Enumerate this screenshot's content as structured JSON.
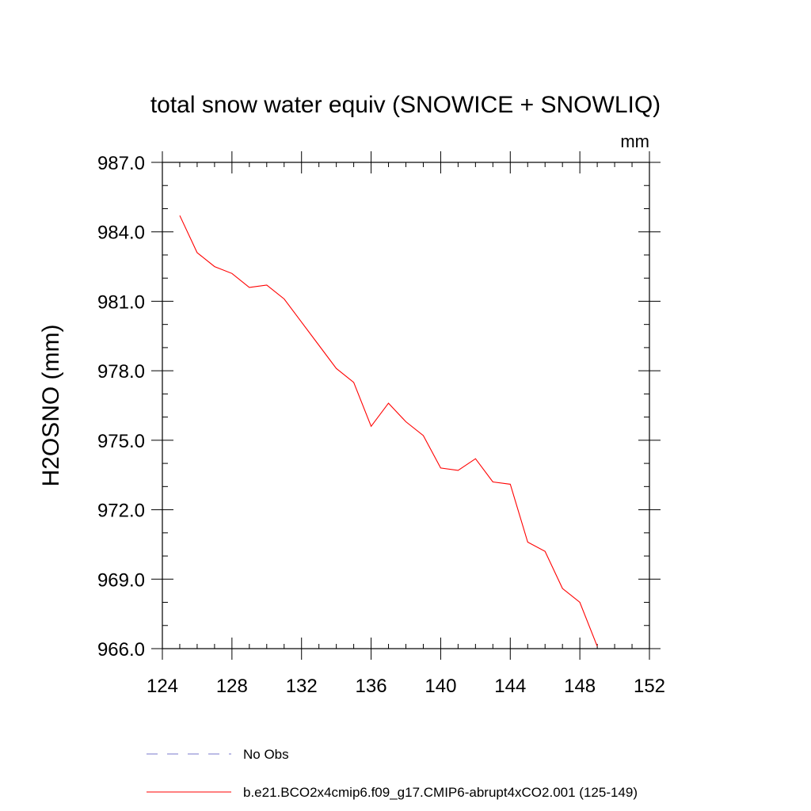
{
  "chart_data": {
    "type": "line",
    "title": "total snow water equiv (SNOWICE + SNOWLIQ)",
    "units": "mm",
    "ylabel": "H2OSNO  (mm)",
    "xlabel": "",
    "xlim": [
      124,
      152
    ],
    "ylim": [
      966.0,
      987.0
    ],
    "x_ticks": [
      124,
      128,
      132,
      136,
      140,
      144,
      148,
      152
    ],
    "x_tick_labels": [
      "124",
      "128",
      "132",
      "136",
      "140",
      "144",
      "148",
      "152"
    ],
    "y_ticks": [
      966,
      969,
      972,
      975,
      978,
      981,
      984,
      987
    ],
    "y_tick_labels": [
      "966.0",
      "969.0",
      "972.0",
      "975.0",
      "978.0",
      "981.0",
      "984.0",
      "987.0"
    ],
    "x_minor_step": 1,
    "y_minor_step": 1,
    "grid": false,
    "series": [
      {
        "name": "b.e21.BCO2x4cmip6.f09_g17.CMIP6-abrupt4xCO2.001 (125-149)",
        "color": "#ff0000",
        "style": "solid",
        "x": [
          125,
          126,
          127,
          128,
          129,
          130,
          131,
          132,
          133,
          134,
          135,
          136,
          137,
          138,
          139,
          140,
          141,
          142,
          143,
          144,
          145,
          146,
          147,
          148,
          149
        ],
        "y": [
          984.7,
          983.1,
          982.5,
          982.2,
          981.6,
          981.7,
          981.1,
          980.1,
          979.1,
          978.1,
          977.5,
          975.6,
          976.6,
          975.8,
          975.2,
          973.8,
          973.7,
          974.2,
          973.2,
          973.1,
          970.6,
          970.2,
          968.6,
          968.0,
          966.1
        ]
      }
    ],
    "legend": {
      "placement": "bottom",
      "entries": [
        {
          "label": "No Obs",
          "color": "#7a7acc",
          "style": "dashed"
        },
        {
          "label": "b.e21.BCO2x4cmip6.f09_g17.CMIP6-abrupt4xCO2.001 (125-149)",
          "color": "#ff0000",
          "style": "solid"
        }
      ]
    }
  }
}
